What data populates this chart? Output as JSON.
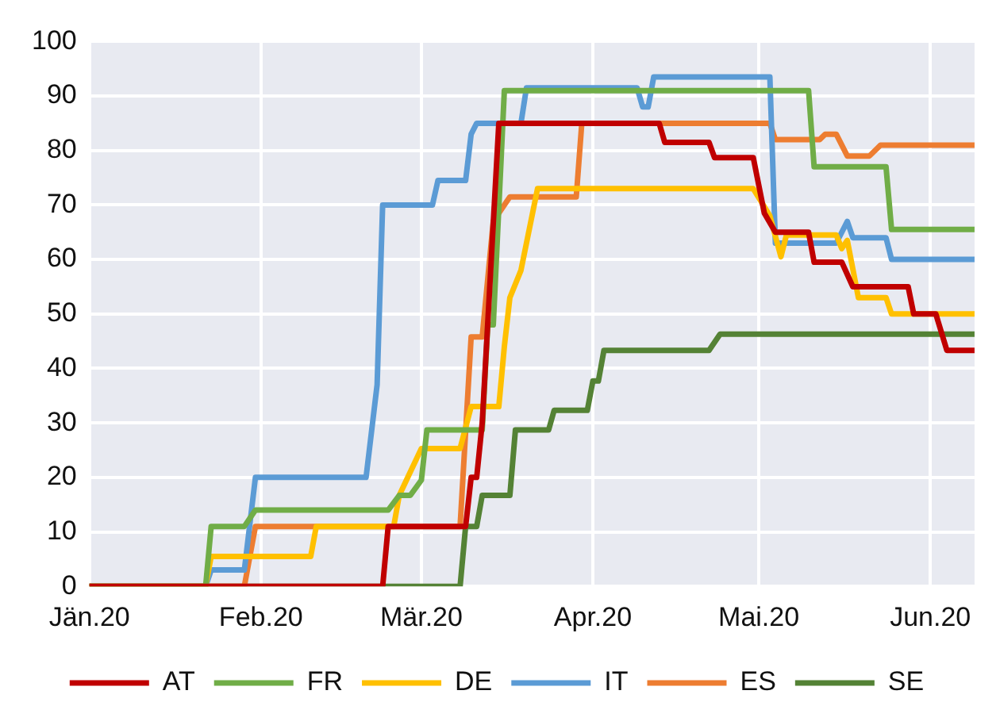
{
  "chart_data": {
    "type": "line",
    "xlim": [
      "2020-01-01",
      "2020-06-09"
    ],
    "xticks": [
      {
        "value": "2020-01-01",
        "label": "Jän.20"
      },
      {
        "value": "2020-02-01",
        "label": "Feb.20"
      },
      {
        "value": "2020-03-01",
        "label": "Mär.20"
      },
      {
        "value": "2020-04-01",
        "label": "Apr.20"
      },
      {
        "value": "2020-05-01",
        "label": "Mai.20"
      },
      {
        "value": "2020-06-01",
        "label": "Jun.20"
      }
    ],
    "ylim": [
      0,
      100
    ],
    "yticks": [
      0,
      10,
      20,
      30,
      40,
      50,
      60,
      70,
      80,
      90,
      100
    ],
    "grid": true,
    "legend": "bottom",
    "series": [
      {
        "name": "AT",
        "color": "#c00000",
        "x": [
          "2020-01-01",
          "2020-02-23",
          "2020-02-24",
          "2020-03-09",
          "2020-03-10",
          "2020-03-11",
          "2020-03-12",
          "2020-03-15",
          "2020-04-13",
          "2020-04-14",
          "2020-04-22",
          "2020-04-23",
          "2020-04-30",
          "2020-05-02",
          "2020-05-04",
          "2020-05-10",
          "2020-05-11",
          "2020-05-16",
          "2020-05-18",
          "2020-05-28",
          "2020-05-29",
          "2020-06-02",
          "2020-06-04",
          "2020-06-09"
        ],
        "values": [
          0,
          0,
          11,
          11,
          20,
          20,
          30,
          85,
          85,
          81.5,
          81.5,
          78.7,
          78.7,
          68.5,
          65,
          65,
          59.5,
          59.5,
          55,
          55,
          50,
          50,
          43.3,
          43.3
        ]
      },
      {
        "name": "FR",
        "color": "#70ad47",
        "x": [
          "2020-01-01",
          "2020-01-22",
          "2020-01-23",
          "2020-01-29",
          "2020-01-31",
          "2020-02-24",
          "2020-02-26",
          "2020-02-28",
          "2020-03-01",
          "2020-03-02",
          "2020-03-12",
          "2020-03-13",
          "2020-03-14",
          "2020-03-16",
          "2020-05-10",
          "2020-05-11",
          "2020-05-24",
          "2020-05-25",
          "2020-06-09"
        ],
        "values": [
          0,
          0,
          11,
          11,
          14,
          14,
          16.7,
          16.7,
          19.5,
          28.7,
          28.7,
          48,
          48,
          91,
          91,
          77,
          77,
          65.5,
          65.5
        ]
      },
      {
        "name": "DE",
        "color": "#ffc000",
        "x": [
          "2020-01-01",
          "2020-01-22",
          "2020-01-23",
          "2020-02-10",
          "2020-02-11",
          "2020-02-25",
          "2020-02-26",
          "2020-03-01",
          "2020-03-08",
          "2020-03-10",
          "2020-03-15",
          "2020-03-16",
          "2020-03-17",
          "2020-03-19",
          "2020-03-22",
          "2020-04-30",
          "2020-05-03",
          "2020-05-05",
          "2020-05-06",
          "2020-05-15",
          "2020-05-16",
          "2020-05-17",
          "2020-05-19",
          "2020-05-24",
          "2020-05-25",
          "2020-06-09"
        ],
        "values": [
          0,
          0,
          5.5,
          5.5,
          11,
          11,
          16.7,
          25.3,
          25.3,
          33,
          33,
          44,
          53,
          58,
          73,
          73,
          68,
          60.5,
          64.5,
          64.5,
          62,
          63.5,
          53,
          53,
          50,
          50
        ]
      },
      {
        "name": "IT",
        "color": "#5b9bd5",
        "x": [
          "2020-01-01",
          "2020-01-22",
          "2020-01-23",
          "2020-01-29",
          "2020-01-31",
          "2020-02-20",
          "2020-02-22",
          "2020-02-23",
          "2020-03-03",
          "2020-03-04",
          "2020-03-09",
          "2020-03-10",
          "2020-03-11",
          "2020-03-19",
          "2020-03-20",
          "2020-04-09",
          "2020-04-10",
          "2020-04-11",
          "2020-04-12",
          "2020-05-03",
          "2020-05-04",
          "2020-05-15",
          "2020-05-17",
          "2020-05-18",
          "2020-05-24",
          "2020-05-25",
          "2020-06-09"
        ],
        "values": [
          0,
          0,
          3,
          3,
          20,
          20,
          37,
          70,
          70,
          74.5,
          74.5,
          83,
          85,
          85,
          91.5,
          91.5,
          88,
          88,
          93.5,
          93.5,
          63,
          63,
          67,
          64,
          64,
          60,
          60
        ]
      },
      {
        "name": "ES",
        "color": "#ed7d31",
        "x": [
          "2020-01-01",
          "2020-01-29",
          "2020-01-31",
          "2020-03-08",
          "2020-03-10",
          "2020-03-12",
          "2020-03-14",
          "2020-03-17",
          "2020-03-29",
          "2020-03-30",
          "2020-05-03",
          "2020-05-04",
          "2020-05-12",
          "2020-05-13",
          "2020-05-15",
          "2020-05-17",
          "2020-05-21",
          "2020-05-23",
          "2020-06-09"
        ],
        "values": [
          0,
          0,
          11,
          11,
          45.8,
          45.8,
          67,
          71.5,
          71.5,
          85,
          85,
          82,
          82,
          83,
          83,
          79,
          79,
          81,
          81
        ]
      },
      {
        "name": "SE",
        "color": "#548235",
        "x": [
          "2020-01-01",
          "2020-03-08",
          "2020-03-09",
          "2020-03-11",
          "2020-03-12",
          "2020-03-17",
          "2020-03-18",
          "2020-03-24",
          "2020-03-25",
          "2020-03-31",
          "2020-04-01",
          "2020-04-02",
          "2020-04-03",
          "2020-04-22",
          "2020-04-24",
          "2020-06-09"
        ],
        "values": [
          0,
          0,
          11,
          11,
          16.7,
          16.7,
          28.7,
          28.7,
          32.3,
          32.3,
          37.7,
          37.7,
          43.3,
          43.3,
          46.3,
          46.3
        ]
      }
    ]
  }
}
